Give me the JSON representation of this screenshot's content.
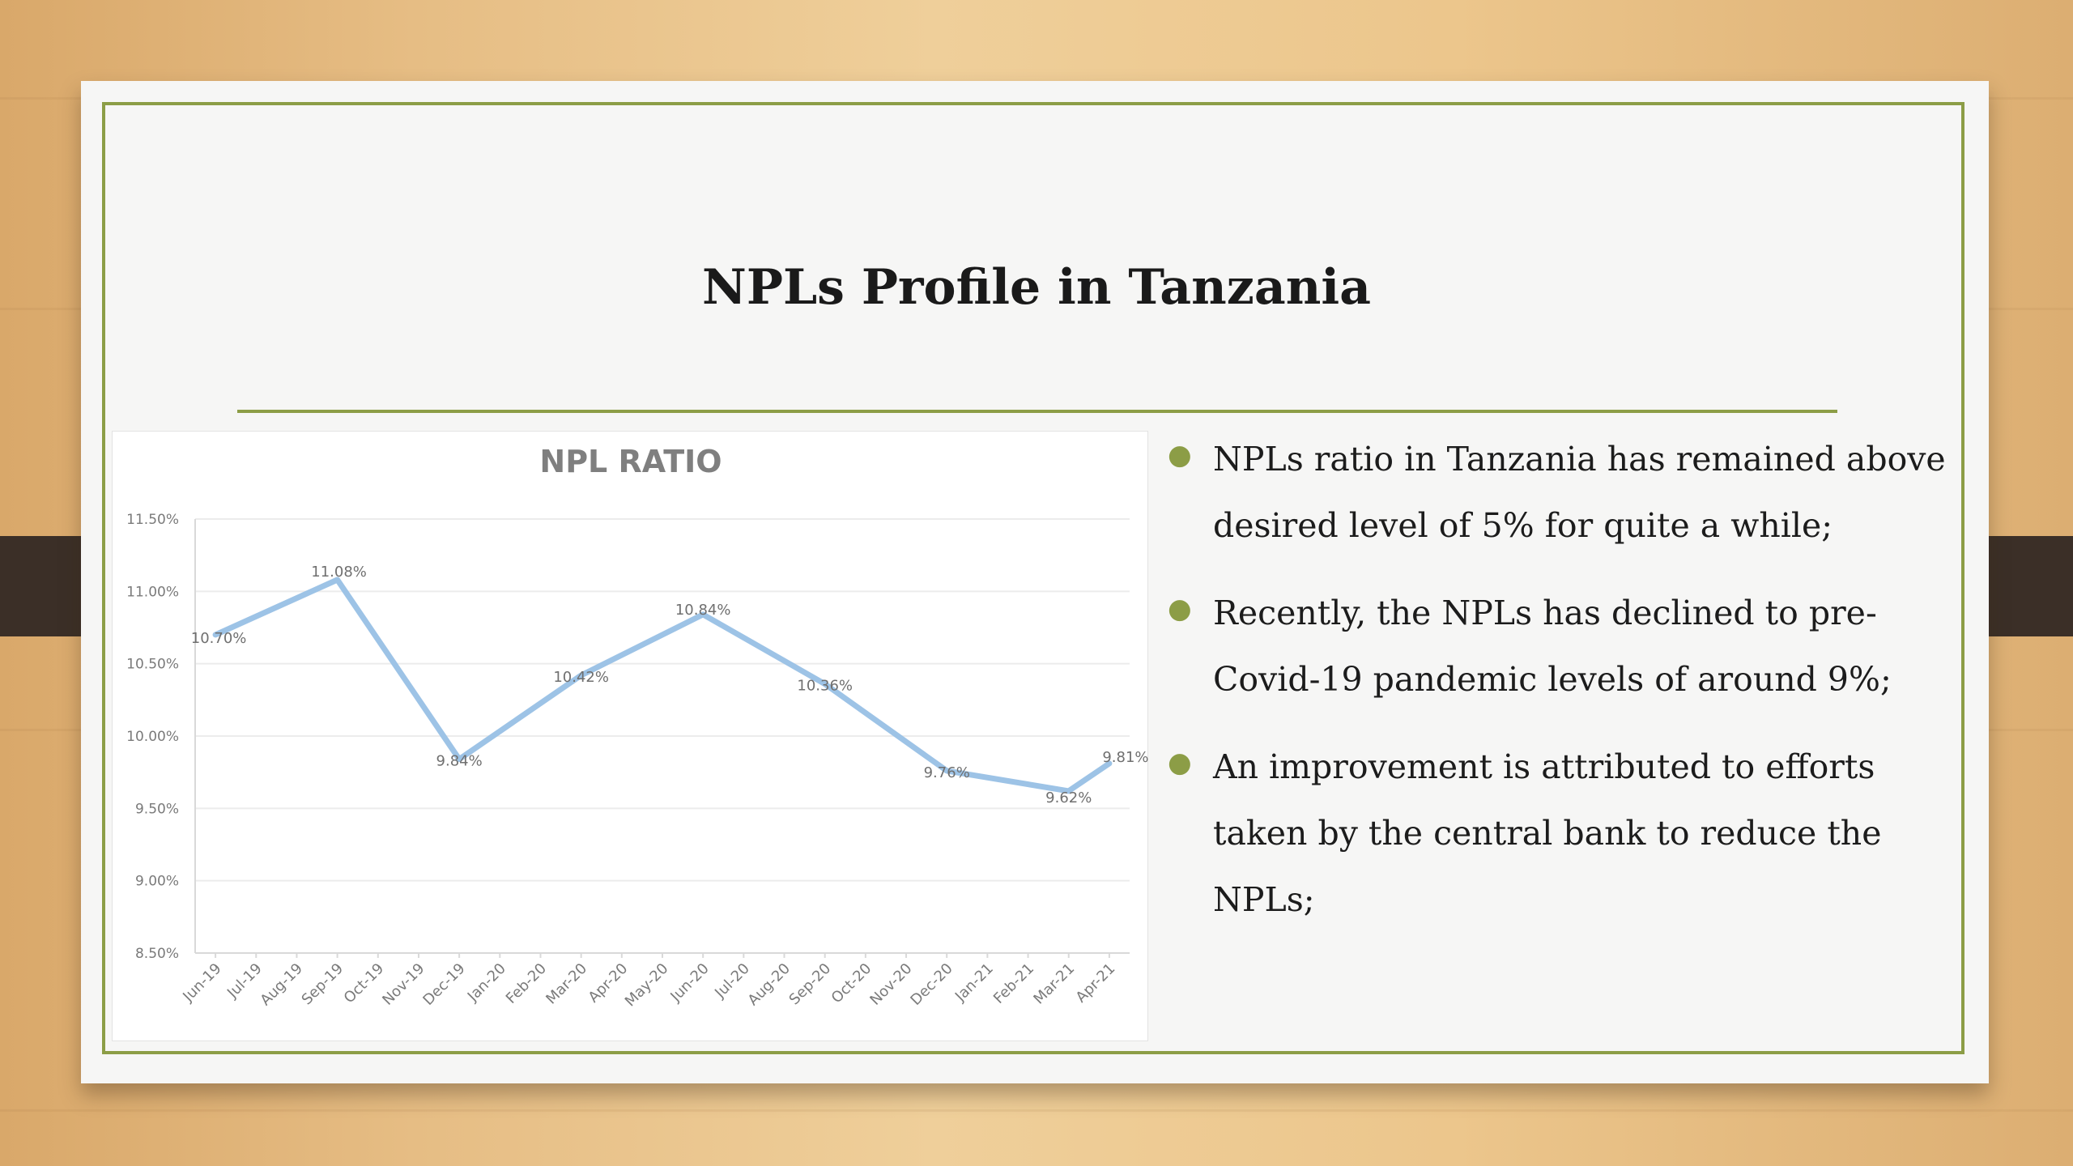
{
  "slide": {
    "title": "NPLs Profile in Tanzania",
    "bullets": [
      "NPLs ratio in Tanzania has remained above desired level of 5% for quite a while;",
      "Recently, the NPLs has declined to pre-Covid-19 pandemic levels of around 9%;",
      "An improvement is attributed to efforts taken by the central bank to reduce the NPLs;"
    ]
  },
  "colors": {
    "accent": "#8c9d46",
    "line": "#9dc3e6",
    "title_chart": "#7f7f7f",
    "clip": "#3b2f27"
  },
  "chart_data": {
    "type": "line",
    "title": "NPL RATIO",
    "xlabel": "",
    "ylabel": "",
    "categories": [
      "Jun-19",
      "Jul-19",
      "Aug-19",
      "Sep-19",
      "Oct-19",
      "Nov-19",
      "Dec-19",
      "Jan-20",
      "Feb-20",
      "Mar-20",
      "Apr-20",
      "May-20",
      "Jun-20",
      "Jul-20",
      "Aug-20",
      "Sep-20",
      "Oct-20",
      "Nov-20",
      "Dec-20",
      "Jan-21",
      "Feb-21",
      "Mar-21",
      "Apr-21"
    ],
    "y_ticks": [
      "11.50%",
      "11.00%",
      "10.50%",
      "10.00%",
      "9.50%",
      "9.00%",
      "8.50%"
    ],
    "ylim": [
      8.5,
      11.5
    ],
    "grid": true,
    "legend": "none",
    "series": [
      {
        "values": [
          10.7,
          null,
          null,
          11.08,
          null,
          null,
          9.84,
          null,
          null,
          10.42,
          null,
          null,
          10.84,
          null,
          null,
          10.36,
          null,
          null,
          9.76,
          null,
          null,
          9.62,
          9.81
        ],
        "data_labels": [
          "10.70%",
          null,
          null,
          "11.08%",
          null,
          null,
          "9.84%",
          null,
          null,
          "10.42%",
          null,
          null,
          "10.84%",
          null,
          null,
          "10.36%",
          null,
          null,
          "9.76%",
          null,
          null,
          "9.62%",
          "9.81%"
        ]
      }
    ]
  }
}
